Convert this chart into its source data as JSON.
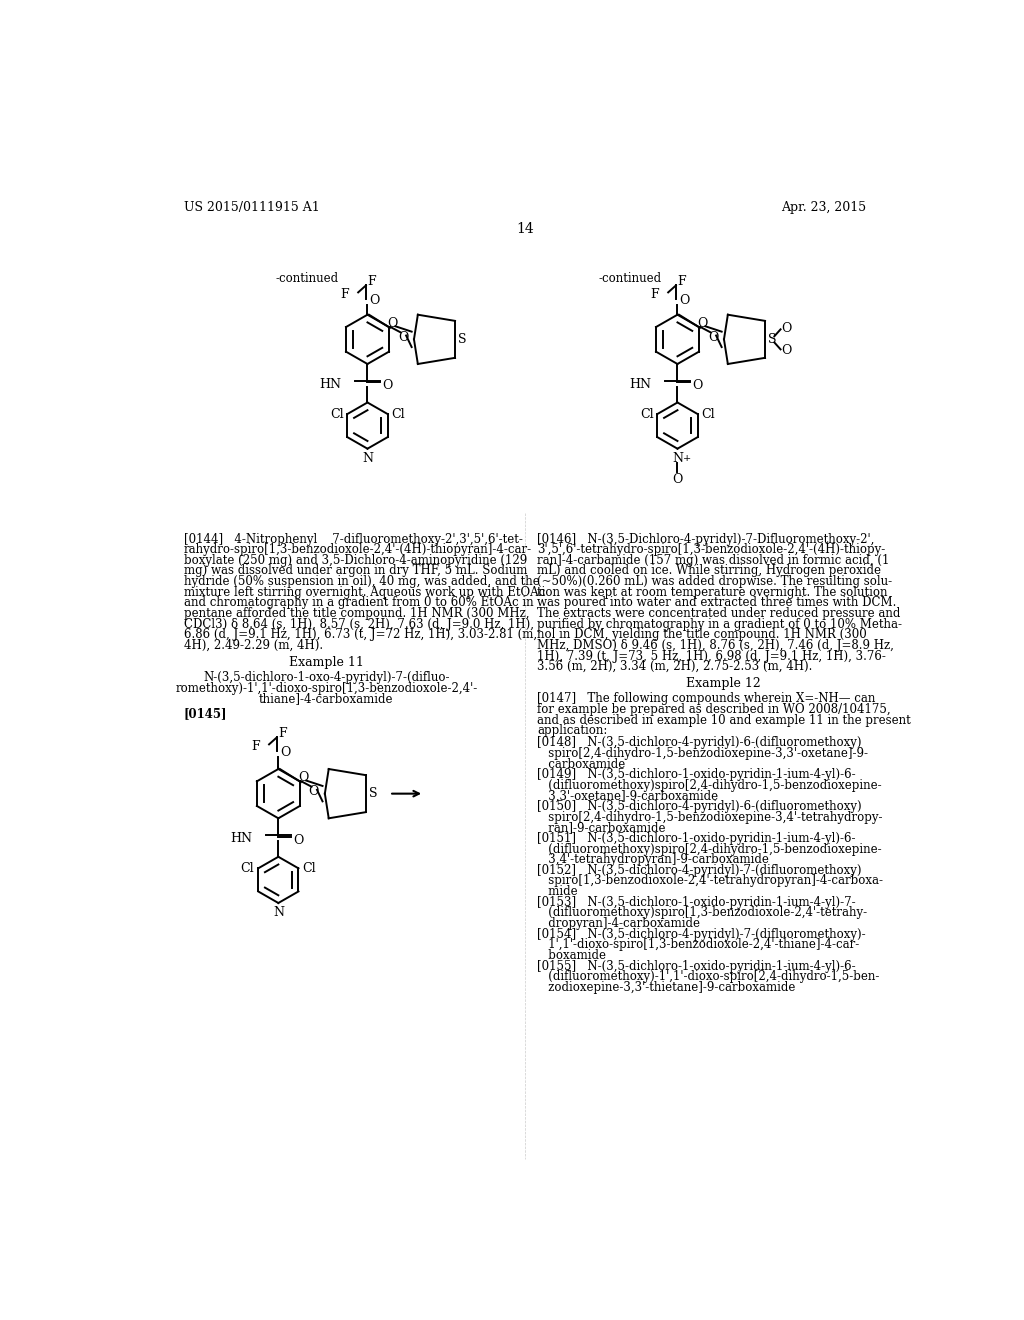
{
  "background_color": "#ffffff",
  "header_left": "US 2015/0111915 A1",
  "header_right": "Apr. 23, 2015",
  "page_number": "14",
  "continued_label": "-continued",
  "example11_title": "Example 11",
  "example11_compound_line1": "N-(3,5-dichloro-1-oxo-4-pyridyl)-7-(difluo-",
  "example11_compound_line2": "romethoxy)-1',1'-dioxo-spiro[1,3-benzodioxole-2,4'-",
  "example11_compound_line3": "thiane]-4-carboxamide",
  "example12_title": "Example 12",
  "para144_lines": [
    "[0144]   4-Nitrophenyl    7-difluoromethoxy-2',3',5',6'-tet-",
    "rahydro-spiro[1,3-benzodioxole-2,4'-(4H)-thiopyran]-4-car-",
    "boxylate (250 mg) and 3,5-Dichloro-4-aminopyridine (129",
    "mg) was dissolved under argon in dry THF, 5 mL. Sodium",
    "hydride (50% suspension in oil), 40 mg, was added, and the",
    "mixture left stirring overnight. Aqueous work up with EtOAc",
    "and chromatography in a gradient from 0 to 60% EtOAc in",
    "pentane afforded the title compound. 1H NMR (300 MHz,",
    "CDCl3) δ 8.64 (s, 1H), 8.57 (s, 2H), 7.63 (d, J=9.0 Hz, 1H),",
    "6.86 (d, J=9.1 Hz, 1H), 6.73 (t, J=72 Hz, 1H), 3.03-2.81 (m,",
    "4H), 2.49-2.29 (m, 4H)."
  ],
  "para146_lines": [
    "[0146]   N-(3,5-Dichloro-4-pyridyl)-7-Difluoromethoxy-2',",
    "3',5',6'-tetrahydro-spiro[1,3-benzodioxole-2,4'-(4H)-thiopy-",
    "ran]-4-carbamide (157 mg) was dissolved in formic acid, (1",
    "mL) and cooled on ice. While stirring, Hydrogen peroxide",
    "(~50%)(0.260 mL) was added dropwise. The resulting solu-",
    "tion was kept at room temperature overnight. The solution",
    "was poured into water and extracted three times with DCM.",
    "The extracts were concentrated under reduced pressure and",
    "purified by chromatography in a gradient of 0 to 10% Metha-",
    "nol in DCM, yielding the title compound. 1H NMR (300",
    "MHz, DMSO) δ 9.46 (s, 1H), 8.76 (s, 2H), 7.46 (d, J=8.9 Hz,",
    "1H), 7.39 (t, J=73, 5 Hz, 1H), 6.98 (d, J=9.1 Hz, 1H), 3.76-",
    "3.56 (m, 2H), 3.34 (m, 2H), 2.75-2.53 (m, 4H)."
  ],
  "para147_lines": [
    "[0147]   The following compounds wherein X=-NH— can",
    "for example be prepared as described in WO 2008/104175,",
    "and as described in example 10 and example 11 in the present",
    "application:"
  ],
  "para148_lines": [
    "[0148]   N-(3,5-dichloro-4-pyridyl)-6-(difluoromethoxy)",
    "   spiro[2,4-dihydro-1,5-benzodioxepine-3,3'-oxetane]-9-",
    "   carboxamide"
  ],
  "para149_lines": [
    "[0149]   N-(3,5-dichloro-1-oxido-pyridin-1-ium-4-yl)-6-",
    "   (difluoromethoxy)spiro[2,4-dihydro-1,5-benzodioxepine-",
    "   3,3'-oxetane]-9-carboxamide"
  ],
  "para150_lines": [
    "[0150]   N-(3,5-dichloro-4-pyridyl)-6-(difluoromethoxy)",
    "   spiro[2,4-dihydro-1,5-benzodioxepine-3,4'-tetrahydropy-",
    "   ran]-9-carboxamide"
  ],
  "para151_lines": [
    "[0151]   N-(3,5-dichloro-1-oxido-pyridin-1-ium-4-yl)-6-",
    "   (difluoromethoxy)spiro[2,4-dihydro-1,5-benzodioxepine-",
    "   3,4'-tetrahydropyran]-9-carboxamide"
  ],
  "para152_lines": [
    "[0152]   N-(3,5-dichloro-4-pyridyl)-7-(difluoromethoxy)",
    "   spiro[1,3-benzodioxole-2,4'-tetrahydropyran]-4-carboxa-",
    "   mide"
  ],
  "para153_lines": [
    "[0153]   N-(3,5-dichloro-1-oxido-pyridin-1-ium-4-yl)-7-",
    "   (difluoromethoxy)spiro[1,3-benzodioxole-2,4'-tetrahy-",
    "   dropyran]-4-carboxamide"
  ],
  "para154_lines": [
    "[0154]   N-(3,5-dichloro-4-pyridyl)-7-(difluoromethoxy)-",
    "   1',1'-dioxo-spiro[1,3-benzodioxole-2,4'-thiane]-4-car-",
    "   boxamide"
  ],
  "para155_lines": [
    "[0155]   N-(3,5-dichloro-1-oxido-pyridin-1-ium-4-yl)-6-",
    "   (difluoromethoxy)-1',1'-dioxo-spiro[2,4-dihydro-1,5-ben-",
    "   zodioxepine-3,3'-thietane]-9-carboxamide"
  ]
}
